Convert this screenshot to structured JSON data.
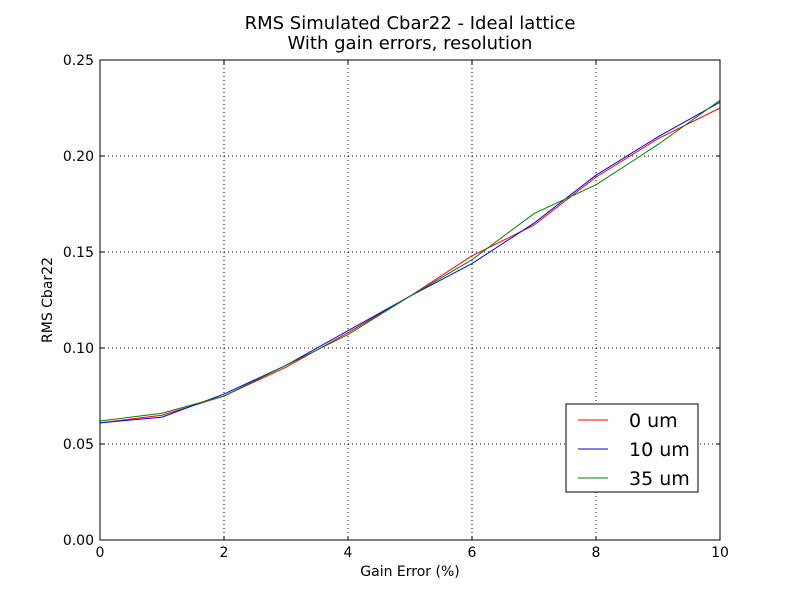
{
  "chart_data": {
    "type": "line",
    "title": "RMS Simulated Cbar22 - Ideal lattice",
    "subtitle": "With gain errors, resolution",
    "xlabel": "Gain Error (%)",
    "ylabel": "RMS Cbar22",
    "xlim": [
      0,
      10
    ],
    "ylim": [
      0.0,
      0.25
    ],
    "xticks": [
      0,
      2,
      4,
      6,
      8,
      10
    ],
    "xtick_labels": [
      "0",
      "2",
      "4",
      "6",
      "8",
      "10"
    ],
    "yticks": [
      0.0,
      0.05,
      0.1,
      0.15,
      0.2,
      0.25
    ],
    "ytick_labels": [
      "0.00",
      "0.05",
      "0.10",
      "0.15",
      "0.20",
      "0.25"
    ],
    "grid": true,
    "legend_position": "lower-right",
    "x": [
      0,
      1,
      2,
      3,
      4,
      5,
      6,
      7,
      8,
      9,
      10
    ],
    "series": [
      {
        "name": "0 um",
        "color": "#ff0000",
        "values": [
          0.061,
          0.065,
          0.075,
          0.09,
          0.108,
          0.127,
          0.148,
          0.164,
          0.189,
          0.209,
          0.225
        ]
      },
      {
        "name": "10 um",
        "color": "#0000ff",
        "values": [
          0.061,
          0.064,
          0.076,
          0.091,
          0.109,
          0.127,
          0.144,
          0.165,
          0.19,
          0.21,
          0.228
        ]
      },
      {
        "name": "35 um",
        "color": "#008000",
        "values": [
          0.062,
          0.066,
          0.075,
          0.091,
          0.107,
          0.127,
          0.146,
          0.17,
          0.185,
          0.206,
          0.229
        ]
      }
    ]
  }
}
